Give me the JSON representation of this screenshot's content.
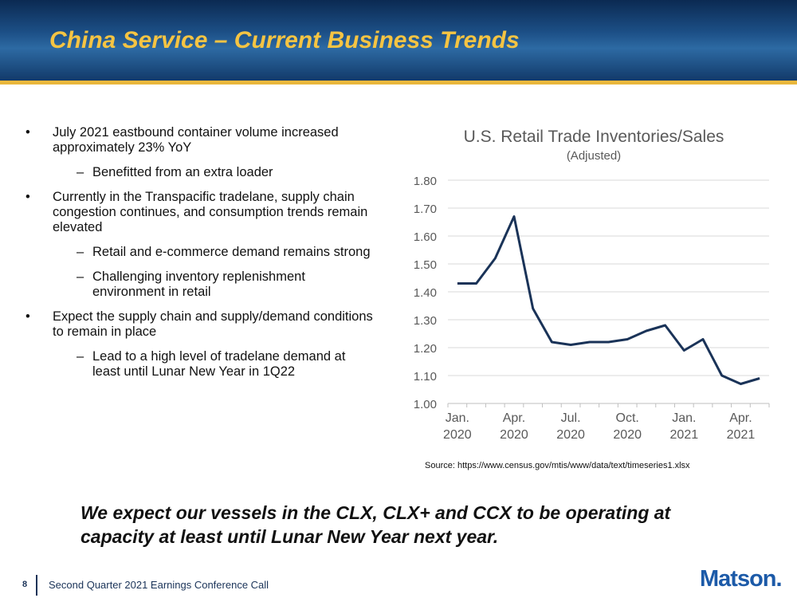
{
  "header": {
    "title": "China Service – Current Business Trends"
  },
  "bullets": [
    {
      "text": "July 2021 eastbound container volume increased approximately 23% YoY",
      "sub": [
        "Benefitted from an extra loader"
      ]
    },
    {
      "text": "Currently in the Transpacific tradelane, supply chain congestion continues, and consumption trends remain elevated",
      "sub": [
        "Retail and e-commerce demand remains strong",
        "Challenging inventory replenishment environment in retail"
      ]
    },
    {
      "text": "Expect the supply chain and supply/demand conditions to remain in place",
      "sub": [
        "Lead to a high level of tradelane demand at least until Lunar New Year in 1Q22"
      ]
    }
  ],
  "chart_data": {
    "type": "line",
    "title": "U.S. Retail Trade Inventories/Sales",
    "subtitle": "(Adjusted)",
    "categories": [
      "Jan.\n2020",
      null,
      null,
      "Apr.\n2020",
      null,
      null,
      "Jul.\n2020",
      null,
      null,
      "Oct.\n2020",
      null,
      null,
      "Jan.\n2021",
      null,
      null,
      "Apr.\n2021",
      null
    ],
    "series": [
      {
        "name": "Inventories/Sales",
        "color": "#1a3358",
        "values": [
          1.43,
          1.43,
          1.52,
          1.67,
          1.34,
          1.22,
          1.21,
          1.22,
          1.22,
          1.23,
          1.26,
          1.28,
          1.19,
          1.23,
          1.1,
          1.07,
          1.09
        ]
      }
    ],
    "ylim": [
      1.0,
      1.8
    ],
    "yticks": [
      {
        "value": 1.0,
        "label": "1.00"
      },
      {
        "value": 1.1,
        "label": "1.10"
      },
      {
        "value": 1.2,
        "label": "1.20"
      },
      {
        "value": 1.3,
        "label": "1.30"
      },
      {
        "value": 1.4,
        "label": "1.40"
      },
      {
        "value": 1.5,
        "label": "1.50"
      },
      {
        "value": 1.6,
        "label": "1.60"
      },
      {
        "value": 1.7,
        "label": "1.70"
      },
      {
        "value": 1.8,
        "label": "1.80"
      }
    ],
    "grid": true,
    "source": "Source: https://www.census.gov/mtis/www/data/text/timeseries1.xlsx"
  },
  "statement": "We expect our vessels in the CLX, CLX+ and CCX to be operating at capacity at least until Lunar New Year next year.",
  "footer": {
    "page": "8",
    "text": "Second Quarter 2021 Earnings Conference Call",
    "logo": "Matson."
  }
}
